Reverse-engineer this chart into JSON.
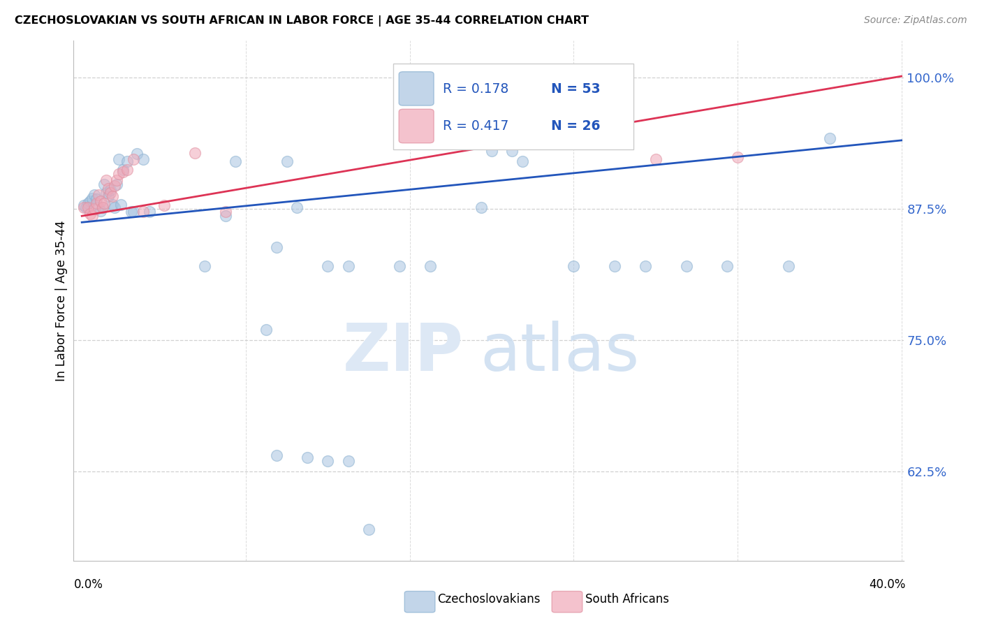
{
  "title": "CZECHOSLOVAKIAN VS SOUTH AFRICAN IN LABOR FORCE | AGE 35-44 CORRELATION CHART",
  "source": "Source: ZipAtlas.com",
  "ylabel": "In Labor Force | Age 35-44",
  "blue_label": "Czechoslovakians",
  "pink_label": "South Africans",
  "blue_r": "R = 0.178",
  "blue_n": "N = 53",
  "pink_r": "R = 0.417",
  "pink_n": "N = 26",
  "blue_fill": "#a8c4e0",
  "pink_fill": "#f0a8b8",
  "blue_edge": "#8ab0d0",
  "pink_edge": "#e090a0",
  "line_blue": "#2255bb",
  "line_pink": "#dd3355",
  "text_blue": "#2255bb",
  "text_pink": "#2255bb",
  "axis_label_color": "#3366cc",
  "background_color": "#ffffff",
  "grid_color": "#cccccc",
  "xlim_min": 0.0,
  "xlim_max": 0.4,
  "ylim_min": 0.54,
  "ylim_max": 1.035,
  "yticks": [
    0.625,
    0.75,
    0.875,
    1.0
  ],
  "ytick_labels": [
    "62.5%",
    "75.0%",
    "87.5%",
    "100.0%"
  ],
  "blue_line_x": [
    0.0,
    0.4
  ],
  "blue_line_y": [
    0.862,
    0.94
  ],
  "pink_line_x": [
    0.0,
    0.4
  ],
  "pink_line_y": [
    0.868,
    1.001
  ],
  "blue_x": [
    0.001,
    0.002,
    0.003,
    0.004,
    0.005,
    0.006,
    0.007,
    0.008,
    0.009,
    0.01,
    0.011,
    0.012,
    0.013,
    0.014,
    0.015,
    0.016,
    0.017,
    0.018,
    0.019,
    0.02,
    0.022,
    0.024,
    0.025,
    0.027,
    0.03,
    0.033,
    0.06,
    0.07,
    0.075,
    0.09,
    0.095,
    0.1,
    0.105,
    0.12,
    0.13,
    0.155,
    0.17,
    0.195,
    0.2,
    0.21,
    0.215,
    0.24,
    0.26,
    0.275,
    0.295,
    0.315,
    0.345,
    0.365,
    0.095,
    0.11,
    0.12,
    0.13,
    0.14
  ],
  "blue_y": [
    0.878,
    0.876,
    0.88,
    0.882,
    0.885,
    0.888,
    0.884,
    0.876,
    0.873,
    0.876,
    0.898,
    0.89,
    0.887,
    0.893,
    0.879,
    0.876,
    0.898,
    0.922,
    0.879,
    0.912,
    0.92,
    0.872,
    0.872,
    0.927,
    0.922,
    0.872,
    0.82,
    0.868,
    0.92,
    0.76,
    0.838,
    0.92,
    0.876,
    0.82,
    0.82,
    0.82,
    0.82,
    0.876,
    0.93,
    0.93,
    0.92,
    0.82,
    0.82,
    0.82,
    0.82,
    0.82,
    0.82,
    0.942,
    0.64,
    0.638,
    0.635,
    0.635,
    0.57
  ],
  "pink_x": [
    0.001,
    0.003,
    0.004,
    0.005,
    0.006,
    0.007,
    0.008,
    0.009,
    0.01,
    0.011,
    0.012,
    0.013,
    0.014,
    0.015,
    0.016,
    0.017,
    0.018,
    0.02,
    0.022,
    0.025,
    0.03,
    0.04,
    0.055,
    0.07,
    0.28,
    0.32
  ],
  "pink_y": [
    0.876,
    0.876,
    0.87,
    0.868,
    0.875,
    0.88,
    0.888,
    0.882,
    0.876,
    0.88,
    0.902,
    0.894,
    0.89,
    0.887,
    0.897,
    0.902,
    0.908,
    0.91,
    0.912,
    0.922,
    0.872,
    0.878,
    0.928,
    0.872,
    0.922,
    0.924
  ]
}
